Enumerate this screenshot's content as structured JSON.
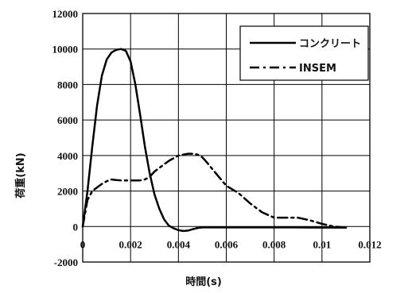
{
  "chart_data": {
    "type": "line",
    "title": "",
    "xlabel": "時間(s)",
    "ylabel": "荷重(kN)",
    "xlim": [
      0,
      0.012
    ],
    "ylim": [
      -2000,
      12000
    ],
    "x_ticks": [
      "0",
      "0.002",
      "0.004",
      "0.006",
      "0.008",
      "0.01",
      "0.012"
    ],
    "y_ticks": [
      "12000",
      "10000",
      "8000",
      "6000",
      "4000",
      "2000",
      "0",
      "-2000"
    ],
    "x_tick_values": [
      0,
      0.002,
      0.004,
      0.006,
      0.008,
      0.01,
      0.012
    ],
    "y_tick_values": [
      12000,
      10000,
      8000,
      6000,
      4000,
      2000,
      0,
      -2000
    ],
    "grid": true,
    "legend_position": "top-right",
    "series": [
      {
        "name": "コンクリート",
        "style": "solid",
        "color": "#000000",
        "x": [
          0,
          0.0002,
          0.0004,
          0.0006,
          0.0008,
          0.001,
          0.0012,
          0.0014,
          0.0016,
          0.0018,
          0.002,
          0.0022,
          0.0024,
          0.0026,
          0.0028,
          0.003,
          0.0032,
          0.0034,
          0.0036,
          0.0038,
          0.004,
          0.0042,
          0.0044,
          0.0046,
          0.0048,
          0.005,
          0.006,
          0.007,
          0.008,
          0.009,
          0.01,
          0.011
        ],
        "values": [
          0,
          2000,
          4500,
          6800,
          8500,
          9400,
          9800,
          9950,
          10000,
          9900,
          9300,
          8000,
          6300,
          4500,
          3000,
          1800,
          1000,
          400,
          50,
          -100,
          -200,
          -250,
          -230,
          -150,
          -80,
          -50,
          -50,
          -50,
          -50,
          -50,
          -60,
          -60
        ]
      },
      {
        "name": "INSEM",
        "style": "dashdot",
        "color": "#000000",
        "x": [
          0,
          0.0002,
          0.0004,
          0.0006,
          0.0008,
          0.001,
          0.0012,
          0.0014,
          0.0016,
          0.0018,
          0.002,
          0.0024,
          0.0026,
          0.0028,
          0.003,
          0.0032,
          0.0034,
          0.0036,
          0.0038,
          0.004,
          0.0042,
          0.0044,
          0.0046,
          0.0048,
          0.005,
          0.0052,
          0.0055,
          0.006,
          0.0065,
          0.007,
          0.0075,
          0.008,
          0.0085,
          0.009,
          0.0095,
          0.01,
          0.0105,
          0.011
        ],
        "values": [
          0,
          1500,
          2000,
          2200,
          2400,
          2550,
          2650,
          2620,
          2600,
          2600,
          2600,
          2600,
          2650,
          2800,
          3100,
          3300,
          3500,
          3700,
          3850,
          4000,
          4050,
          4100,
          4100,
          4050,
          3900,
          3600,
          3100,
          2300,
          1900,
          1300,
          800,
          500,
          500,
          500,
          350,
          150,
          0,
          -60
        ]
      }
    ]
  }
}
